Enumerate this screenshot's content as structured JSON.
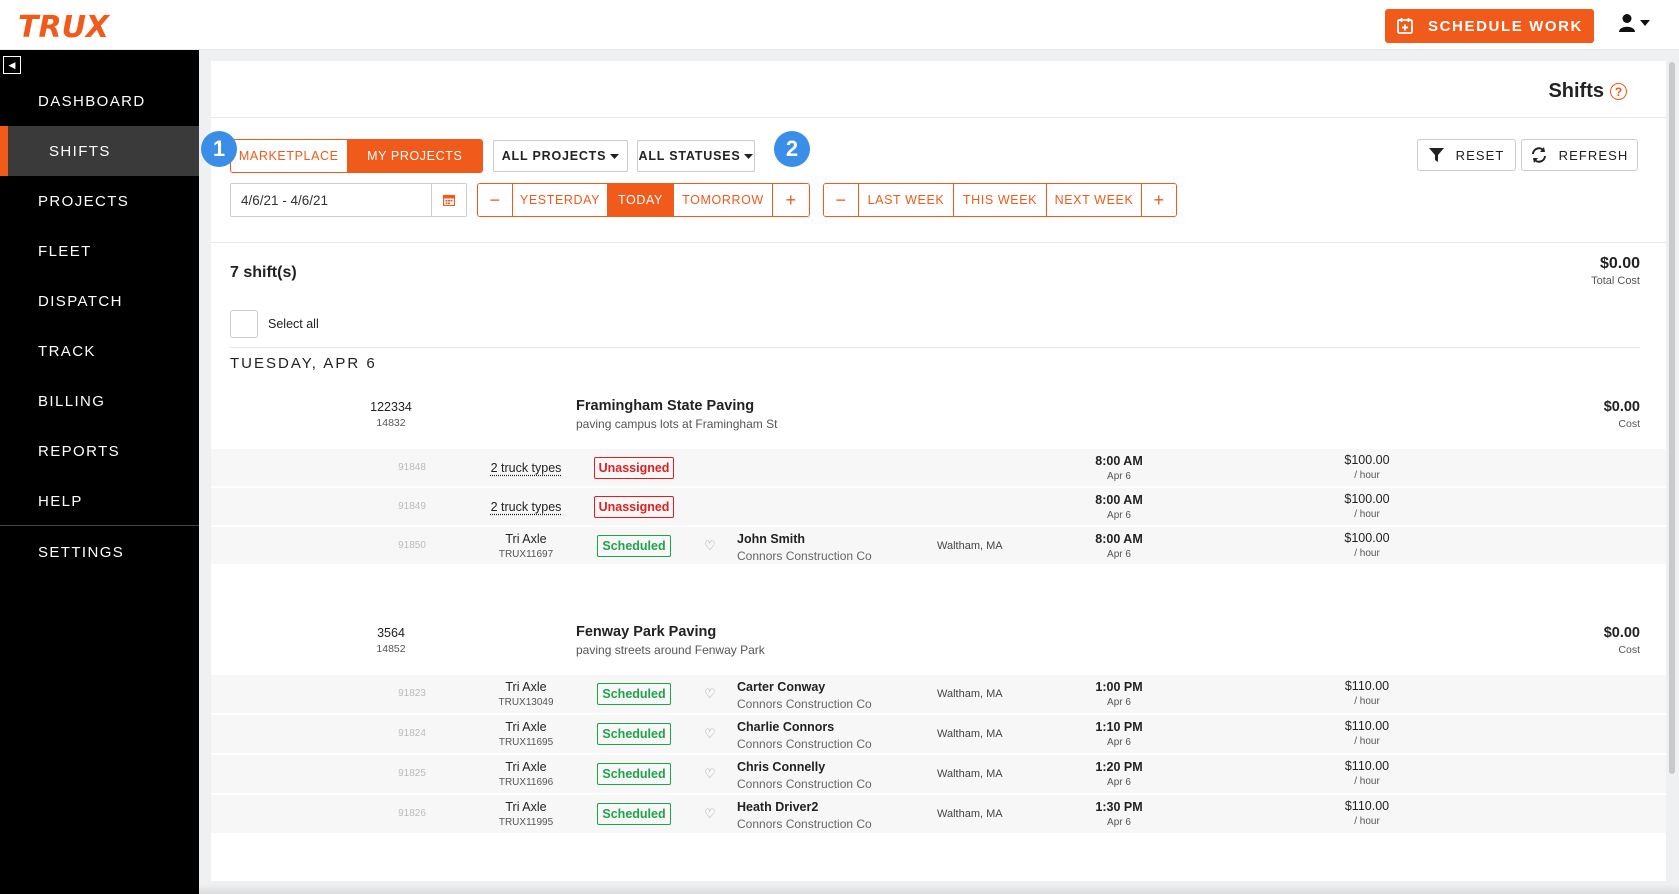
{
  "header": {
    "logo": "TRUX",
    "schedule_label": "SCHEDULE WORK"
  },
  "sidebar": {
    "items": [
      {
        "label": "DASHBOARD"
      },
      {
        "label": "SHIFTS"
      },
      {
        "label": "PROJECTS"
      },
      {
        "label": "FLEET"
      },
      {
        "label": "DISPATCH"
      },
      {
        "label": "TRACK"
      },
      {
        "label": "BILLING"
      },
      {
        "label": "REPORTS"
      },
      {
        "label": "HELP"
      },
      {
        "label": "SETTINGS"
      }
    ],
    "active": "SHIFTS"
  },
  "page": {
    "title": "Shifts",
    "help_icon": "?"
  },
  "filters": {
    "source_tabs": [
      {
        "label": "MARKETPLACE"
      },
      {
        "label": "MY PROJECTS"
      }
    ],
    "source_selected": "MY PROJECTS",
    "projects_dropdown": "ALL PROJECTS",
    "statuses_dropdown": "ALL STATUSES",
    "badge_1": "1",
    "badge_2": "2",
    "reset_label": "RESET",
    "refresh_label": "REFRESH",
    "date_range": "4/6/21  -  4/6/21",
    "day_nav": {
      "minus": "−",
      "yesterday": "YESTERDAY",
      "today": "TODAY",
      "tomorrow": "TOMORROW",
      "plus": "+"
    },
    "week_nav": {
      "minus": "−",
      "last": "LAST WEEK",
      "this": "THIS WEEK",
      "next": "NEXT WEEK",
      "plus": "+"
    }
  },
  "summary": {
    "count": "7 shift(s)",
    "total": "$0.00",
    "total_label": "Total Cost",
    "select_all": "Select all",
    "day_header": "TUESDAY, APR 6"
  },
  "groups": [
    {
      "number": "122334",
      "sub": "14832",
      "name": "Framingham State Paving",
      "desc": "paving campus lots at Framingham St",
      "cost": "$0.00",
      "cost_label": "Cost",
      "rows": [
        {
          "id": "91848",
          "truck": "2 truck types",
          "truck_sub": "",
          "status": "Unassigned",
          "driver": "",
          "company": "",
          "location": "",
          "time": "8:00 AM",
          "date": "Apr 6",
          "rate": "$100.00",
          "unit": "/ hour"
        },
        {
          "id": "91849",
          "truck": "2 truck types",
          "truck_sub": "",
          "status": "Unassigned",
          "driver": "",
          "company": "",
          "location": "",
          "time": "8:00 AM",
          "date": "Apr 6",
          "rate": "$100.00",
          "unit": "/ hour"
        },
        {
          "id": "91850",
          "truck": "Tri Axle",
          "truck_sub": "TRUX11697",
          "status": "Scheduled",
          "driver": "John Smith",
          "company": "Connors Construction Co",
          "location": "Waltham, MA",
          "time": "8:00 AM",
          "date": "Apr 6",
          "rate": "$100.00",
          "unit": "/ hour"
        }
      ]
    },
    {
      "number": "3564",
      "sub": "14852",
      "name": "Fenway Park Paving",
      "desc": "paving streets around Fenway Park",
      "cost": "$0.00",
      "cost_label": "Cost",
      "rows": [
        {
          "id": "91823",
          "truck": "Tri Axle",
          "truck_sub": "TRUX13049",
          "status": "Scheduled",
          "driver": "Carter Conway",
          "company": "Connors Construction Co",
          "location": "Waltham, MA",
          "time": "1:00 PM",
          "date": "Apr 6",
          "rate": "$110.00",
          "unit": "/ hour"
        },
        {
          "id": "91824",
          "truck": "Tri Axle",
          "truck_sub": "TRUX11695",
          "status": "Scheduled",
          "driver": "Charlie Connors",
          "company": "Connors Construction Co",
          "location": "Waltham, MA",
          "time": "1:10 PM",
          "date": "Apr 6",
          "rate": "$110.00",
          "unit": "/ hour"
        },
        {
          "id": "91825",
          "truck": "Tri Axle",
          "truck_sub": "TRUX11696",
          "status": "Scheduled",
          "driver": "Chris Connelly",
          "company": "Connors Construction Co",
          "location": "Waltham, MA",
          "time": "1:20 PM",
          "date": "Apr 6",
          "rate": "$110.00",
          "unit": "/ hour"
        },
        {
          "id": "91826",
          "truck": "Tri Axle",
          "truck_sub": "TRUX11995",
          "status": "Scheduled",
          "driver": "Heath Driver2",
          "company": "Connors Construction Co",
          "location": "Waltham, MA",
          "time": "1:30 PM",
          "date": "Apr 6",
          "rate": "$110.00",
          "unit": "/ hour"
        }
      ]
    }
  ],
  "colors": {
    "accent": "#f05a1a",
    "unassigned": "#e02020",
    "scheduled": "#1ea34a",
    "badge": "#3b8ee8"
  }
}
